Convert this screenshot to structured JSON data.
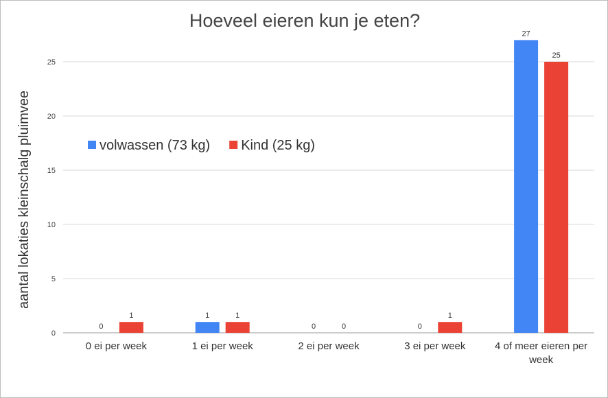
{
  "chart_data": {
    "type": "bar",
    "title": "Hoeveel eieren kun je eten?",
    "xlabel": "",
    "ylabel": "aantal lokaties kleinschalg pluimvee",
    "categories": [
      "0 ei per week",
      "1 ei per week",
      "2 ei per week",
      "3 ei per week",
      "4 of meer eieren per week"
    ],
    "series": [
      {
        "name": "volwassen (73 kg)",
        "color": "#4285f4",
        "values": [
          0,
          1,
          0,
          0,
          27
        ]
      },
      {
        "name": "Kind (25 kg)",
        "color": "#ea4335",
        "values": [
          1,
          1,
          0,
          1,
          25
        ]
      }
    ],
    "ylim": [
      0,
      27
    ],
    "yticks": [
      0,
      5,
      10,
      15,
      20,
      25
    ],
    "grid": true,
    "legend": "top-left",
    "data_labels": true
  }
}
